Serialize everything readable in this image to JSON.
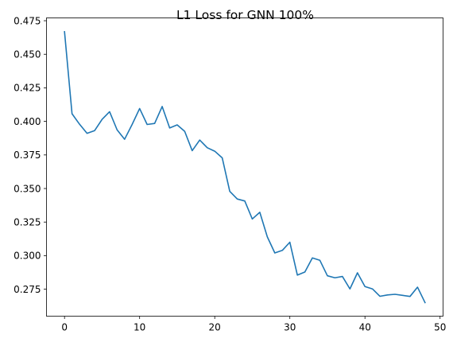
{
  "chart_data": {
    "type": "line",
    "title": "L1 Loss for GNN 100%",
    "xlabel": "",
    "ylabel": "",
    "xlim": [
      -2.4,
      50.4
    ],
    "ylim": [
      0.2549,
      0.4771
    ],
    "xticks": [
      0,
      10,
      20,
      30,
      40,
      50
    ],
    "xtick_labels": [
      "0",
      "10",
      "20",
      "30",
      "40",
      "50"
    ],
    "yticks": [
      0.275,
      0.3,
      0.325,
      0.35,
      0.375,
      0.4,
      0.425,
      0.45,
      0.475
    ],
    "ytick_labels": [
      "0.275",
      "0.300",
      "0.325",
      "0.350",
      "0.375",
      "0.400",
      "0.425",
      "0.450",
      "0.475"
    ],
    "grid": false,
    "line_color": "#1f77b4",
    "series": [
      {
        "x": [
          0,
          1,
          2,
          3,
          4,
          5,
          6,
          7,
          8,
          9,
          10,
          11,
          12,
          13,
          14,
          15,
          16,
          17,
          18,
          19,
          20,
          21,
          22,
          23,
          24,
          25,
          26,
          27,
          28,
          29,
          30,
          31,
          32,
          33,
          34,
          35,
          36,
          37,
          38,
          39,
          40,
          41,
          42,
          43,
          44,
          45,
          46,
          47,
          48
        ],
        "values": [
          0.4668,
          0.4057,
          0.3979,
          0.3911,
          0.3931,
          0.4015,
          0.4072,
          0.3937,
          0.3867,
          0.3977,
          0.4096,
          0.3977,
          0.3985,
          0.4111,
          0.3951,
          0.3974,
          0.3926,
          0.3782,
          0.3861,
          0.3804,
          0.3778,
          0.3728,
          0.3479,
          0.3422,
          0.3407,
          0.3273,
          0.3323,
          0.314,
          0.302,
          0.3039,
          0.31,
          0.2855,
          0.2878,
          0.2983,
          0.2965,
          0.285,
          0.2835,
          0.2845,
          0.2752,
          0.2872,
          0.277,
          0.2752,
          0.2697,
          0.2707,
          0.2712,
          0.2704,
          0.2696,
          0.2765,
          0.265
        ]
      }
    ]
  }
}
